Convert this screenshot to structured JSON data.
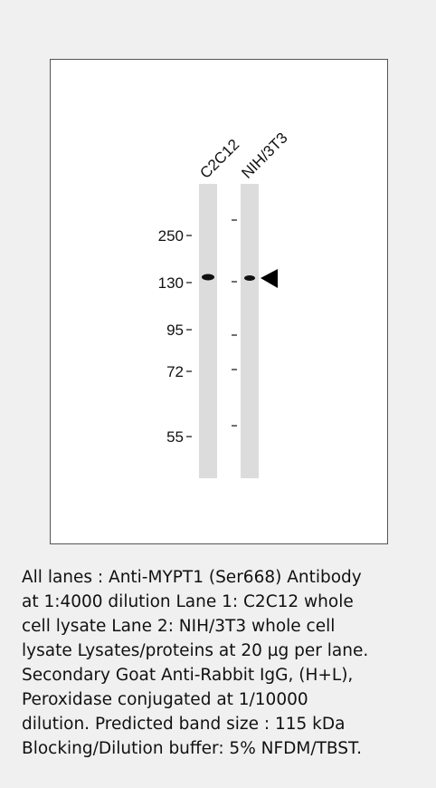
{
  "blot": {
    "lanes": [
      "C2C12",
      "NIH/3T3"
    ],
    "markers": [
      "250",
      "130",
      "95",
      "72",
      "55"
    ]
  },
  "caption": {
    "lines": [
      "All lanes : Anti-MYPT1 (Ser668) Antibody",
      "at 1:4000 dilution Lane 1: C2C12 whole",
      "cell lysate Lane 2: NIH/3T3 whole cell",
      "lysate Lysates/proteins at 20 µg per lane.",
      "Secondary Goat Anti-Rabbit IgG, (H+L),",
      "Peroxidase conjugated at 1/10000",
      "dilution. Predicted band size : 115 kDa",
      "Blocking/Dilution buffer: 5% NFDM/TBST."
    ]
  }
}
